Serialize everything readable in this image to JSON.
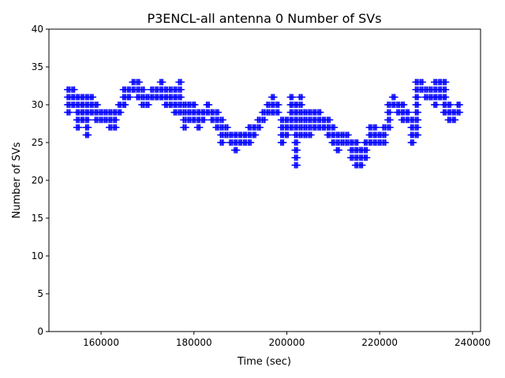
{
  "chart_data": {
    "type": "scatter",
    "title": "P3ENCL-all antenna 0 Number of SVs",
    "xlabel": "Time (sec)",
    "ylabel": "Number of SVs",
    "xlim": [
      148775,
      241725
    ],
    "ylim": [
      0,
      40
    ],
    "xticks": [
      160000,
      180000,
      200000,
      220000,
      240000
    ],
    "yticks": [
      0,
      5,
      10,
      15,
      20,
      25,
      30,
      35,
      40
    ],
    "marker": "+",
    "color": "#0000ff",
    "grid": false,
    "series_columns_note_fields": [
      "time",
      "min_svs",
      "max_svs"
    ],
    "columns": [
      [
        153000,
        29,
        32
      ],
      [
        154000,
        30,
        32
      ],
      [
        155000,
        27,
        31
      ],
      [
        156000,
        28,
        31
      ],
      [
        157000,
        26,
        31
      ],
      [
        158000,
        29,
        31
      ],
      [
        159000,
        28,
        30
      ],
      [
        160000,
        28,
        29
      ],
      [
        161000,
        28,
        29
      ],
      [
        162000,
        27,
        29
      ],
      [
        163000,
        27,
        29
      ],
      [
        164000,
        29,
        30
      ],
      [
        165000,
        30,
        32
      ],
      [
        166000,
        31,
        32
      ],
      [
        167000,
        32,
        33
      ],
      [
        168000,
        31,
        33
      ],
      [
        169000,
        30,
        32
      ],
      [
        170000,
        30,
        31
      ],
      [
        171000,
        31,
        32
      ],
      [
        172000,
        31,
        32
      ],
      [
        173000,
        31,
        33
      ],
      [
        174000,
        30,
        32
      ],
      [
        175000,
        30,
        32
      ],
      [
        176000,
        29,
        32
      ],
      [
        177000,
        29,
        33
      ],
      [
        178000,
        27,
        30
      ],
      [
        179000,
        28,
        30
      ],
      [
        180000,
        28,
        30
      ],
      [
        181000,
        27,
        29
      ],
      [
        182000,
        28,
        29
      ],
      [
        183000,
        29,
        30
      ],
      [
        184000,
        28,
        29
      ],
      [
        185000,
        27,
        29
      ],
      [
        186000,
        25,
        28
      ],
      [
        187000,
        26,
        27
      ],
      [
        188000,
        25,
        26
      ],
      [
        189000,
        24,
        26
      ],
      [
        190000,
        25,
        26
      ],
      [
        191000,
        25,
        26
      ],
      [
        192000,
        25,
        27
      ],
      [
        193000,
        26,
        27
      ],
      [
        194000,
        27,
        28
      ],
      [
        195000,
        28,
        29
      ],
      [
        196000,
        29,
        30
      ],
      [
        197000,
        29,
        31
      ],
      [
        198000,
        29,
        30
      ],
      [
        199000,
        25,
        28
      ],
      [
        200000,
        26,
        28
      ],
      [
        201000,
        27,
        31
      ],
      [
        202000,
        22,
        30
      ],
      [
        203000,
        26,
        31
      ],
      [
        204000,
        26,
        29
      ],
      [
        205000,
        26,
        29
      ],
      [
        206000,
        27,
        29
      ],
      [
        207000,
        27,
        29
      ],
      [
        208000,
        27,
        28
      ],
      [
        209000,
        26,
        28
      ],
      [
        210000,
        25,
        27
      ],
      [
        211000,
        24,
        26
      ],
      [
        212000,
        25,
        26
      ],
      [
        213000,
        25,
        26
      ],
      [
        214000,
        23,
        25
      ],
      [
        215000,
        22,
        25
      ],
      [
        216000,
        22,
        24
      ],
      [
        217000,
        23,
        25
      ],
      [
        218000,
        25,
        27
      ],
      [
        219000,
        25,
        27
      ],
      [
        220000,
        25,
        26
      ],
      [
        221000,
        25,
        27
      ],
      [
        222000,
        27,
        30
      ],
      [
        223000,
        30,
        31
      ],
      [
        224000,
        29,
        30
      ],
      [
        225000,
        28,
        30
      ],
      [
        226000,
        28,
        29
      ],
      [
        227000,
        25,
        28
      ],
      [
        228000,
        26,
        33
      ],
      [
        229000,
        32,
        33
      ],
      [
        230000,
        31,
        32
      ],
      [
        231000,
        31,
        32
      ],
      [
        232000,
        30,
        33
      ],
      [
        233000,
        31,
        33
      ],
      [
        234000,
        29,
        33
      ],
      [
        235000,
        28,
        30
      ],
      [
        236000,
        28,
        29
      ],
      [
        237000,
        29,
        30
      ]
    ]
  }
}
